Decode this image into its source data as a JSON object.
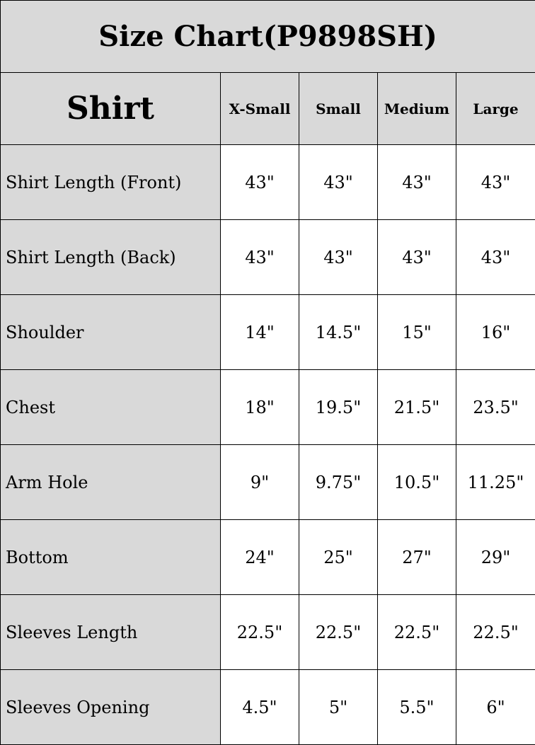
{
  "title": "Size Chart(P9898SH)",
  "header": {
    "section": "Shirt",
    "sizes": [
      "X-Small",
      "Small",
      "Medium",
      "Large"
    ]
  },
  "rows": [
    {
      "label": "Shirt Length (Front)",
      "values": [
        "43\"",
        "43\"",
        "43\"",
        "43\""
      ]
    },
    {
      "label": "Shirt Length (Back)",
      "values": [
        "43\"",
        "43\"",
        "43\"",
        "43\""
      ]
    },
    {
      "label": "Shoulder",
      "values": [
        "14\"",
        "14.5\"",
        "15\"",
        "16\""
      ]
    },
    {
      "label": "Chest",
      "values": [
        "18\"",
        "19.5\"",
        "21.5\"",
        "23.5\""
      ]
    },
    {
      "label": "Arm Hole",
      "values": [
        "9\"",
        "9.75\"",
        "10.5\"",
        "11.25\""
      ]
    },
    {
      "label": "Bottom",
      "values": [
        "24\"",
        "25\"",
        "27\"",
        "29\""
      ]
    },
    {
      "label": "Sleeves Length",
      "values": [
        "22.5\"",
        "22.5\"",
        "22.5\"",
        "22.5\""
      ]
    },
    {
      "label": "Sleeves Opening",
      "values": [
        "4.5\"",
        "5\"",
        "5.5\"",
        "6\""
      ]
    }
  ],
  "colors": {
    "header_bg": "#d9d9d9",
    "cell_bg": "#ffffff",
    "border": "#000000"
  }
}
